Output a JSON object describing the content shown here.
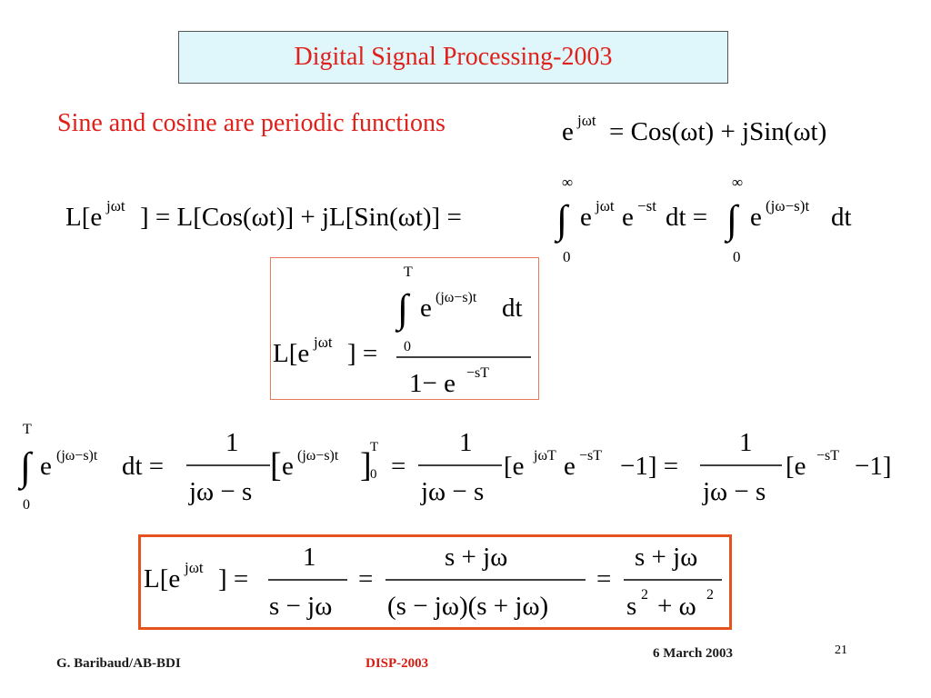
{
  "header": {
    "title": "Digital Signal Processing-2003"
  },
  "slide": {
    "subtitle": "Sine and cosine are periodic functions"
  },
  "equations": {
    "euler": "e^{jωt} = Cos(ωt) + jSin(ωt)",
    "laplace_integral": "L[e^{jωt}] = L[Cos(ωt)] + jL[Sin(ωt)] = ∫_0^∞ e^{jωt} e^{−st} dt = ∫_0^∞ e^{(jω−s)t} dt",
    "periodic_form": "L[e^{jωt}] = ( ∫_0^T e^{(jω−s)t} dt ) / (1 − e^{−sT})",
    "integral_eval": "∫_0^T e^{(jω−s)t} dt = 1/(jω−s) [e^{(jω−s)t}]_0^T = 1/(jω−s) [e^{jωT} e^{−sT} −1] = 1/(jω−s) [e^{−sT} −1]",
    "result": "L[e^{jωt}] = 1/(s−jω) = (s+jω)/((s−jω)(s+jω)) = (s+jω)/(s^2+ω^2)"
  },
  "footer": {
    "author": "G. Baribaud/AB-BDI",
    "course": "DISP-2003",
    "date": "6 March 2003",
    "page_number": "21"
  }
}
